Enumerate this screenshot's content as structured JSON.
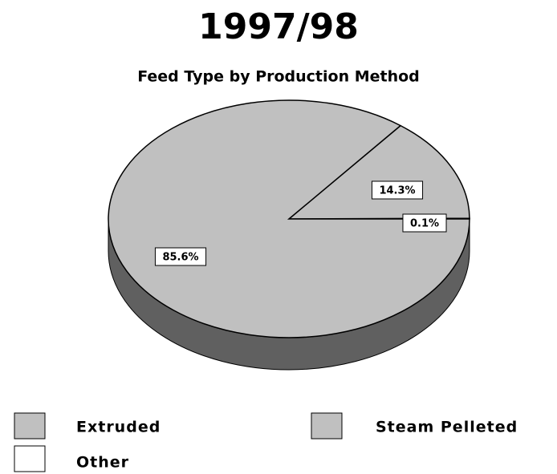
{
  "chart_data": {
    "type": "pie",
    "title": "1997/98",
    "subtitle": "Feed Type by Production Method",
    "categories": [
      "Extruded",
      "Steam Pelleted",
      "Other"
    ],
    "values": [
      14.3,
      85.6,
      0.1
    ],
    "value_labels": [
      "14.3%",
      "85.6%",
      "0.1%"
    ],
    "colors": [
      "#c0c0c0",
      "#c0c0c0",
      "#ffffff"
    ]
  }
}
